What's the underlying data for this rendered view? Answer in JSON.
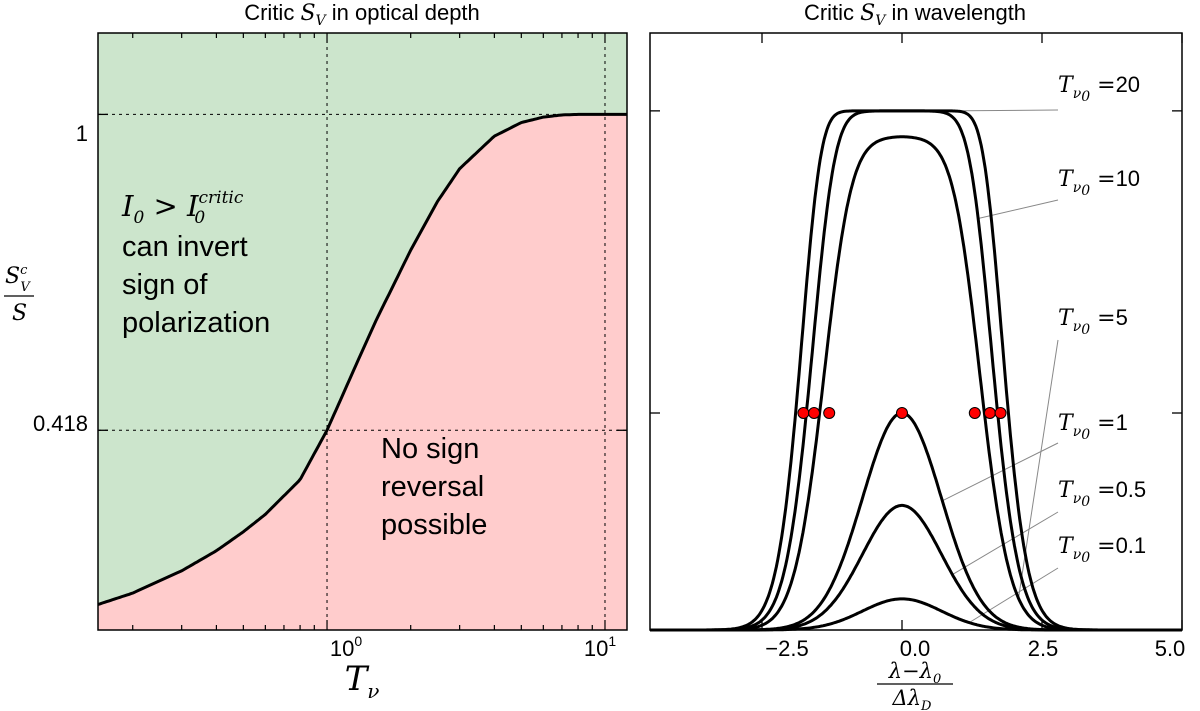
{
  "chart_data": [
    {
      "panel": "left",
      "type": "area",
      "title_text": "Critic",
      "title_symbol": "S",
      "title_symbol_sub": "V",
      "title_suffix": "in optical depth",
      "xlabel_symbol": "T",
      "xlabel_sub": "ν",
      "x_scale": "log",
      "xlim": [
        0.15,
        12
      ],
      "ylim": [
        0.05,
        1.15
      ],
      "xticks_major": [
        {
          "base": "10",
          "exp": "0",
          "value": 1
        },
        {
          "base": "10",
          "exp": "1",
          "value": 10
        }
      ],
      "yticks": [
        {
          "label": "1",
          "value": 1.0
        },
        {
          "label": "0.418",
          "value": 0.418
        }
      ],
      "ylabel_num": "S",
      "ylabel_num_sup": "c",
      "ylabel_num_sub": "V",
      "ylabel_den": "S",
      "curve": {
        "x": [
          0.15,
          0.2,
          0.3,
          0.4,
          0.5,
          0.6,
          0.8,
          1.0,
          1.25,
          1.5,
          2.0,
          2.5,
          3.0,
          4.0,
          5.0,
          6.0,
          7.0,
          8.0,
          10.0,
          12.0
        ],
        "y": [
          0.097,
          0.118,
          0.159,
          0.196,
          0.231,
          0.263,
          0.327,
          0.418,
          0.53,
          0.62,
          0.75,
          0.84,
          0.9,
          0.96,
          0.985,
          0.995,
          0.999,
          1.0,
          1.0,
          1.0
        ]
      },
      "fill_above_color": "#cce5cc",
      "fill_below_color": "#ffcccc",
      "region_above_math": "I",
      "region_above_math_sub": "0",
      "region_above_op": ">",
      "region_above_math2": "I",
      "region_above_math2_sub": "0",
      "region_above_math2_sup": "critic",
      "region_above_text": [
        "can invert",
        "sign of",
        "polarization"
      ],
      "region_below_text": [
        "No sign",
        "reversal",
        "possible"
      ]
    },
    {
      "panel": "right",
      "type": "line",
      "title_text": "Critic",
      "title_symbol": "S",
      "title_symbol_sub": "V",
      "title_suffix": "in wavelength",
      "xlabel_num": "λ−λ",
      "xlabel_num_sub": "0",
      "xlabel_den": "Δλ",
      "xlabel_den_sub": "D",
      "xlim": [
        -4.5,
        5.0
      ],
      "ylim": [
        0.0,
        1.15
      ],
      "xticks": [
        "−2.5",
        "0.0",
        "2.5",
        "5.0"
      ],
      "xtick_values": [
        -2.5,
        0.0,
        2.5,
        5.0
      ],
      "series": [
        {
          "name": "20",
          "tau": 20,
          "peak": 1.0
        },
        {
          "name": "10",
          "tau": 10,
          "peak": 1.0
        },
        {
          "name": "5",
          "tau": 5,
          "peak": 0.95
        },
        {
          "name": "1",
          "tau": 1,
          "peak": 0.418
        },
        {
          "name": "0.5",
          "tau": 0.5,
          "peak": 0.24
        },
        {
          "name": "0.1",
          "tau": 0.1,
          "peak": 0.06
        }
      ],
      "series_label_prefix": "T",
      "series_label_sub": "ν",
      "series_label_sub2": "0",
      "series_label_eq": "=",
      "annotated": [
        "20",
        "10",
        "5",
        "1",
        "0.5",
        "0.1"
      ],
      "critical_level": 0.418,
      "marker_color": "#ff0000",
      "marker_x": [
        -1.76,
        -1.57,
        -1.3,
        0.0,
        1.3,
        1.57,
        1.76
      ]
    }
  ]
}
